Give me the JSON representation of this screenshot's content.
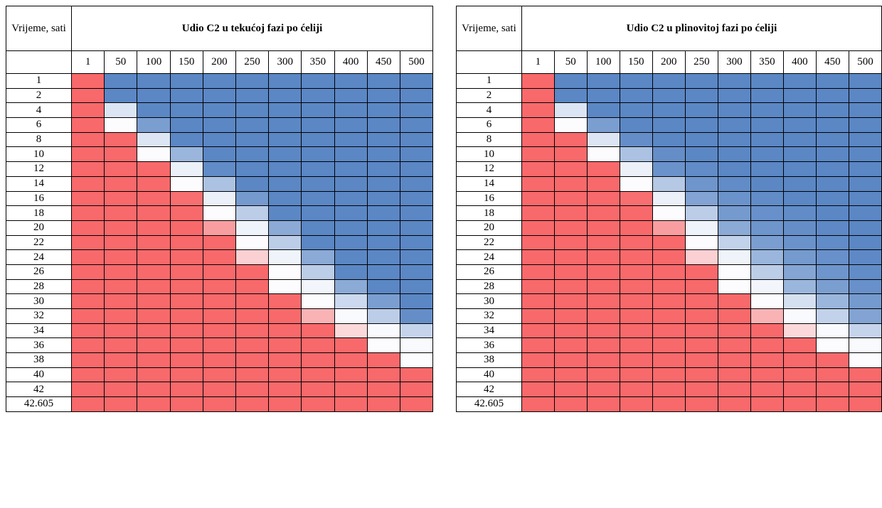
{
  "chart_data": [
    {
      "type": "heatmap",
      "title": "Udio C2 u tekućoj fazi po ćeliji",
      "corner_label": "Vrijeme, sati",
      "columns": [
        "1",
        "50",
        "100",
        "150",
        "200",
        "250",
        "300",
        "350",
        "400",
        "450",
        "500"
      ],
      "rows": [
        "1",
        "2",
        "4",
        "6",
        "8",
        "10",
        "12",
        "14",
        "16",
        "18",
        "20",
        "22",
        "24",
        "26",
        "28",
        "30",
        "32",
        "34",
        "36",
        "38",
        "40",
        "42",
        "42.605"
      ],
      "color_scale": {
        "low": "#5b87c5",
        "mid": "#fcfcff",
        "high": "#f8696b"
      },
      "values": [
        [
          1.0,
          0.0,
          0.0,
          0.0,
          0.0,
          0.0,
          0.0,
          0.0,
          0.0,
          0.0,
          0.0
        ],
        [
          1.0,
          0.0,
          0.0,
          0.0,
          0.0,
          0.0,
          0.0,
          0.0,
          0.0,
          0.0,
          0.0
        ],
        [
          1.0,
          0.4,
          0.0,
          0.0,
          0.0,
          0.0,
          0.0,
          0.0,
          0.0,
          0.0,
          0.0
        ],
        [
          1.0,
          0.5,
          0.1,
          0.0,
          0.0,
          0.0,
          0.0,
          0.0,
          0.0,
          0.0,
          0.0
        ],
        [
          1.0,
          1.0,
          0.4,
          0.0,
          0.0,
          0.0,
          0.0,
          0.0,
          0.0,
          0.0,
          0.0
        ],
        [
          1.0,
          1.0,
          0.5,
          0.2,
          0.0,
          0.0,
          0.0,
          0.0,
          0.0,
          0.0,
          0.0
        ],
        [
          1.0,
          1.0,
          1.0,
          0.45,
          0.02,
          0.0,
          0.0,
          0.0,
          0.0,
          0.0,
          0.0
        ],
        [
          1.0,
          1.0,
          1.0,
          0.5,
          0.25,
          0.0,
          0.0,
          0.0,
          0.0,
          0.0,
          0.0
        ],
        [
          1.0,
          1.0,
          1.0,
          0.98,
          0.45,
          0.08,
          0.0,
          0.0,
          0.0,
          0.0,
          0.0
        ],
        [
          1.0,
          1.0,
          1.0,
          1.0,
          0.5,
          0.3,
          0.0,
          0.0,
          0.0,
          0.0,
          0.0
        ],
        [
          1.0,
          1.0,
          1.0,
          1.0,
          0.82,
          0.46,
          0.15,
          0.0,
          0.0,
          0.0,
          0.0
        ],
        [
          1.0,
          1.0,
          1.0,
          1.0,
          1.0,
          0.5,
          0.3,
          0.0,
          0.0,
          0.0,
          0.0
        ],
        [
          1.0,
          1.0,
          1.0,
          1.0,
          1.0,
          0.65,
          0.46,
          0.15,
          0.0,
          0.0,
          0.0
        ],
        [
          1.0,
          1.0,
          1.0,
          1.0,
          1.0,
          1.0,
          0.5,
          0.3,
          0.0,
          0.0,
          0.0
        ],
        [
          1.0,
          1.0,
          1.0,
          1.0,
          1.0,
          1.0,
          0.5,
          0.47,
          0.15,
          0.0,
          0.0
        ],
        [
          1.0,
          1.0,
          1.0,
          1.0,
          1.0,
          1.0,
          1.0,
          0.5,
          0.35,
          0.1,
          0.0
        ],
        [
          1.0,
          1.0,
          1.0,
          1.0,
          1.0,
          1.0,
          1.0,
          0.75,
          0.49,
          0.3,
          0.03
        ],
        [
          1.0,
          1.0,
          1.0,
          1.0,
          1.0,
          1.0,
          1.0,
          1.0,
          0.62,
          0.49,
          0.33
        ],
        [
          1.0,
          1.0,
          1.0,
          1.0,
          1.0,
          1.0,
          1.0,
          1.0,
          1.0,
          0.5,
          0.49
        ],
        [
          1.0,
          1.0,
          1.0,
          1.0,
          1.0,
          1.0,
          1.0,
          1.0,
          1.0,
          1.0,
          0.5
        ],
        [
          1.0,
          1.0,
          1.0,
          1.0,
          1.0,
          1.0,
          1.0,
          1.0,
          1.0,
          1.0,
          1.0
        ],
        [
          1.0,
          1.0,
          1.0,
          1.0,
          1.0,
          1.0,
          1.0,
          1.0,
          1.0,
          1.0,
          1.0
        ],
        [
          1.0,
          1.0,
          1.0,
          1.0,
          1.0,
          1.0,
          1.0,
          1.0,
          1.0,
          1.0,
          1.0
        ]
      ]
    },
    {
      "type": "heatmap",
      "title": "Udio C2 u plinovitoj fazi po ćeliji",
      "corner_label": "Vrijeme, sati",
      "columns": [
        "1",
        "50",
        "100",
        "150",
        "200",
        "250",
        "300",
        "350",
        "400",
        "450",
        "500"
      ],
      "rows": [
        "1",
        "2",
        "4",
        "6",
        "8",
        "10",
        "12",
        "14",
        "16",
        "18",
        "20",
        "22",
        "24",
        "26",
        "28",
        "30",
        "32",
        "34",
        "36",
        "38",
        "40",
        "42",
        "42.605"
      ],
      "color_scale": {
        "low": "#5b87c5",
        "mid": "#fcfcff",
        "high": "#f8696b"
      },
      "values": [
        [
          1.0,
          0.0,
          0.0,
          0.0,
          0.0,
          0.0,
          0.0,
          0.0,
          0.0,
          0.0,
          0.0
        ],
        [
          1.0,
          0.0,
          0.0,
          0.0,
          0.0,
          0.0,
          0.0,
          0.0,
          0.0,
          0.0,
          0.0
        ],
        [
          1.0,
          0.4,
          0.0,
          0.0,
          0.0,
          0.0,
          0.0,
          0.0,
          0.0,
          0.0,
          0.0
        ],
        [
          1.0,
          0.5,
          0.1,
          0.0,
          0.0,
          0.0,
          0.0,
          0.0,
          0.0,
          0.0,
          0.0
        ],
        [
          1.0,
          1.0,
          0.4,
          0.03,
          0.0,
          0.0,
          0.0,
          0.0,
          0.0,
          0.0,
          0.0
        ],
        [
          1.0,
          1.0,
          0.5,
          0.25,
          0.03,
          0.0,
          0.0,
          0.0,
          0.0,
          0.0,
          0.0
        ],
        [
          1.0,
          1.0,
          1.0,
          0.45,
          0.05,
          0.02,
          0.0,
          0.0,
          0.0,
          0.0,
          0.0
        ],
        [
          1.0,
          1.0,
          1.0,
          0.5,
          0.28,
          0.06,
          0.02,
          0.0,
          0.0,
          0.0,
          0.0
        ],
        [
          1.0,
          1.0,
          1.0,
          0.98,
          0.45,
          0.12,
          0.05,
          0.02,
          0.0,
          0.0,
          0.0
        ],
        [
          1.0,
          1.0,
          1.0,
          1.0,
          0.5,
          0.3,
          0.08,
          0.04,
          0.02,
          0.0,
          0.0
        ],
        [
          1.0,
          1.0,
          1.0,
          1.0,
          0.82,
          0.46,
          0.15,
          0.06,
          0.03,
          0.01,
          0.0
        ],
        [
          1.0,
          1.0,
          1.0,
          1.0,
          1.0,
          0.5,
          0.32,
          0.1,
          0.05,
          0.02,
          0.0
        ],
        [
          1.0,
          1.0,
          1.0,
          1.0,
          1.0,
          0.65,
          0.46,
          0.2,
          0.08,
          0.04,
          0.01
        ],
        [
          1.0,
          1.0,
          1.0,
          1.0,
          1.0,
          1.0,
          0.5,
          0.3,
          0.13,
          0.06,
          0.02
        ],
        [
          1.0,
          1.0,
          1.0,
          1.0,
          1.0,
          1.0,
          0.5,
          0.47,
          0.2,
          0.1,
          0.04
        ],
        [
          1.0,
          1.0,
          1.0,
          1.0,
          1.0,
          1.0,
          1.0,
          0.5,
          0.38,
          0.2,
          0.08
        ],
        [
          1.0,
          1.0,
          1.0,
          1.0,
          1.0,
          1.0,
          1.0,
          0.75,
          0.49,
          0.32,
          0.12
        ],
        [
          1.0,
          1.0,
          1.0,
          1.0,
          1.0,
          1.0,
          1.0,
          1.0,
          0.62,
          0.49,
          0.33
        ],
        [
          1.0,
          1.0,
          1.0,
          1.0,
          1.0,
          1.0,
          1.0,
          1.0,
          1.0,
          0.5,
          0.49
        ],
        [
          1.0,
          1.0,
          1.0,
          1.0,
          1.0,
          1.0,
          1.0,
          1.0,
          1.0,
          1.0,
          0.5
        ],
        [
          1.0,
          1.0,
          1.0,
          1.0,
          1.0,
          1.0,
          1.0,
          1.0,
          1.0,
          1.0,
          1.0
        ],
        [
          1.0,
          1.0,
          1.0,
          1.0,
          1.0,
          1.0,
          1.0,
          1.0,
          1.0,
          1.0,
          1.0
        ],
        [
          1.0,
          1.0,
          1.0,
          1.0,
          1.0,
          1.0,
          1.0,
          1.0,
          1.0,
          1.0,
          1.0
        ]
      ]
    }
  ]
}
